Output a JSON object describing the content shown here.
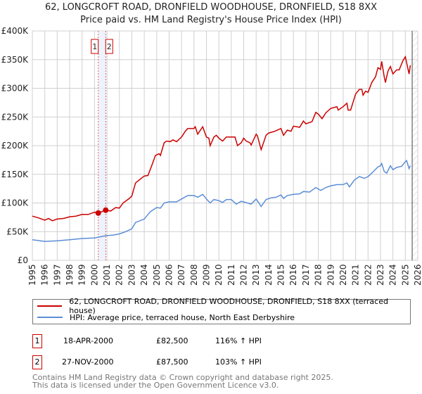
{
  "chart_data": {
    "type": "line",
    "title": "62, LONGCROFT ROAD, DRONFIELD WOODHOUSE, DRONFIELD, S18 8XX",
    "subtitle": "Price paid vs. HM Land Registry's House Price Index (HPI)",
    "xlim": [
      1995,
      2026
    ],
    "ylim": [
      0,
      400000
    ],
    "x_ticks": [
      "1995",
      "1996",
      "1997",
      "1998",
      "1999",
      "2000",
      "2001",
      "2002",
      "2003",
      "2004",
      "2005",
      "2006",
      "2007",
      "2008",
      "2009",
      "2010",
      "2011",
      "2012",
      "2013",
      "2014",
      "2015",
      "2016",
      "2017",
      "2018",
      "2019",
      "2020",
      "2021",
      "2022",
      "2023",
      "2024",
      "2025",
      "2026"
    ],
    "y_ticks": [
      {
        "v": 0,
        "label": "£0"
      },
      {
        "v": 50000,
        "label": "£50K"
      },
      {
        "v": 100000,
        "label": "£100K"
      },
      {
        "v": 150000,
        "label": "£150K"
      },
      {
        "v": 200000,
        "label": "£200K"
      },
      {
        "v": 250000,
        "label": "£250K"
      },
      {
        "v": 300000,
        "label": "£300K"
      },
      {
        "v": 350000,
        "label": "£350K"
      },
      {
        "v": 400000,
        "label": "£400K"
      }
    ],
    "grid": true,
    "forecast_start": 2025.55,
    "series": [
      {
        "name": "62, LONGCROFT ROAD, DRONFIELD WOODHOUSE, DRONFIELD, S18 8XX (terraced house)",
        "color": "#cc0000",
        "x": [
          1995,
          1995.5,
          1996,
          1996.3,
          1996.6,
          1997,
          1997.5,
          1998,
          1998.5,
          1999,
          1999.5,
          2000,
          2000.3,
          2000.9,
          2001.3,
          2001.7,
          2002,
          2002.3,
          2002.8,
          2003,
          2003.3,
          2003.7,
          2004,
          2004.3,
          2004.6,
          2004.9,
          2005.2,
          2005.3,
          2005.6,
          2005.8,
          2006.1,
          2006.3,
          2006.6,
          2007,
          2007.3,
          2007.5,
          2008,
          2008.1,
          2008.3,
          2008.7,
          2009,
          2009.2,
          2009.3,
          2009.6,
          2009.8,
          2010,
          2010.3,
          2010.6,
          2011,
          2011.3,
          2011.5,
          2011.8,
          2012,
          2012.2,
          2012.5,
          2012.6,
          2013,
          2013.1,
          2013.4,
          2013.8,
          2014,
          2014.5,
          2015,
          2015.2,
          2015.5,
          2015.8,
          2016,
          2016.5,
          2016.8,
          2017,
          2017.5,
          2017.8,
          2018,
          2018.3,
          2018.6,
          2019,
          2019.5,
          2019.6,
          2020,
          2020.3,
          2020.4,
          2020.6,
          2021,
          2021.3,
          2021.5,
          2021.6,
          2021.8,
          2022,
          2022.3,
          2022.6,
          2022.8,
          2023,
          2023.1,
          2023.3,
          2023.4,
          2023.6,
          2023.8,
          2024,
          2024.3,
          2024.5,
          2024.8,
          2025,
          2025.3,
          2025.4
        ],
        "y": [
          77,
          74,
          70,
          73,
          69,
          72,
          73,
          76,
          77,
          80,
          80,
          84,
          82.5,
          87.5,
          86,
          92,
          91,
          100,
          108,
          112,
          135,
          142,
          147,
          148,
          165,
          183,
          186,
          183,
          205,
          208,
          207,
          210,
          207,
          215,
          225,
          230,
          230,
          233,
          220,
          233,
          215,
          213,
          200,
          215,
          218,
          213,
          208,
          215,
          215,
          215,
          200,
          205,
          213,
          208,
          205,
          201,
          220,
          217,
          193,
          218,
          222,
          225,
          230,
          218,
          227,
          225,
          234,
          232,
          243,
          238,
          242,
          258,
          255,
          247,
          257,
          265,
          268,
          262,
          268,
          274,
          262,
          262,
          290,
          298,
          298,
          288,
          295,
          293,
          310,
          320,
          336,
          333,
          347,
          320,
          310,
          330,
          338,
          325,
          332,
          332,
          348,
          355,
          325,
          340
        ],
        "y_unit": "£K"
      },
      {
        "name": "HPI: Average price, terraced house, North East Derbyshire",
        "color": "#5b8ed6",
        "x": [
          1995,
          1996,
          1997,
          1998,
          1999,
          2000,
          2000.9,
          2001.5,
          2002,
          2002.5,
          2003,
          2003.3,
          2004,
          2004.5,
          2005,
          2005.3,
          2005.6,
          2006,
          2006.6,
          2007,
          2007.5,
          2008,
          2008.3,
          2008.7,
          2009,
          2009.3,
          2009.6,
          2010,
          2010.3,
          2010.6,
          2011,
          2011.4,
          2011.8,
          2012.3,
          2012.6,
          2013,
          2013.4,
          2013.8,
          2014.2,
          2014.6,
          2015,
          2015.2,
          2015.5,
          2016,
          2016.5,
          2016.8,
          2017.3,
          2017.8,
          2018.2,
          2018.6,
          2019,
          2019.5,
          2020,
          2020.3,
          2020.5,
          2020.9,
          2021.3,
          2021.7,
          2022,
          2022.3,
          2022.8,
          2023,
          2023.1,
          2023.3,
          2023.5,
          2023.8,
          2024,
          2024.3,
          2024.7,
          2025,
          2025.1,
          2025.3,
          2025.4
        ],
        "y": [
          36,
          33,
          34,
          36,
          38,
          39,
          43,
          44,
          46,
          50,
          55,
          66,
          72,
          85,
          92,
          91,
          100,
          102,
          102,
          107,
          113,
          113,
          110,
          115,
          107,
          100,
          106,
          104,
          101,
          106,
          106,
          98,
          103,
          100,
          98,
          107,
          94,
          106,
          109,
          110,
          114,
          108,
          113,
          115,
          116,
          120,
          119,
          127,
          122,
          127,
          130,
          132,
          132,
          135,
          128,
          140,
          146,
          143,
          146,
          152,
          163,
          165,
          169,
          155,
          152,
          165,
          158,
          162,
          164,
          172,
          174,
          160,
          165
        ],
        "y_unit": "£K"
      }
    ],
    "sales": [
      {
        "id": "1",
        "x": 2000.3,
        "price": 82500,
        "date": "18-APR-2000",
        "price_label": "£82,500",
        "hpi": "116% ↑ HPI"
      },
      {
        "id": "2",
        "x": 2000.9,
        "price": 87500,
        "date": "27-NOV-2000",
        "price_label": "£87,500",
        "hpi": "103% ↑ HPI"
      }
    ],
    "legend_placement": "bottom"
  },
  "footer": [
    "Contains HM Land Registry data © Crown copyright and database right 2025.",
    "This data is licensed under the Open Government Licence v3.0."
  ]
}
